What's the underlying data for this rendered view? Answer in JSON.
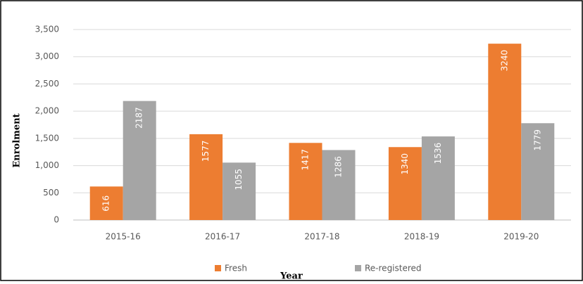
{
  "chart_data": {
    "type": "bar",
    "x_label": "Year",
    "y_label": "Enrolment",
    "categories": [
      "2015-16",
      "2016-17",
      "2017-18",
      "2018-19",
      "2019-20"
    ],
    "series": [
      {
        "name": "Fresh",
        "color": "#ed7d31",
        "values": [
          616,
          1577,
          1417,
          1340,
          3240
        ]
      },
      {
        "name": "Re-registered",
        "color": "#a5a5a5",
        "values": [
          2187,
          1055,
          1286,
          1536,
          1779
        ]
      }
    ],
    "ylim": [
      0,
      3500
    ],
    "yticks": [
      0,
      500,
      {
        "value": 1000,
        "label": "1,000"
      },
      {
        "value": 1500,
        "label": "1,500"
      },
      {
        "value": 2000,
        "label": "2,000"
      },
      {
        "value": 2500,
        "label": "2,500"
      },
      {
        "value": 3000,
        "label": "3,000"
      },
      {
        "value": 3500,
        "label": "3,500"
      }
    ],
    "grid": true,
    "legend": "bottom"
  }
}
